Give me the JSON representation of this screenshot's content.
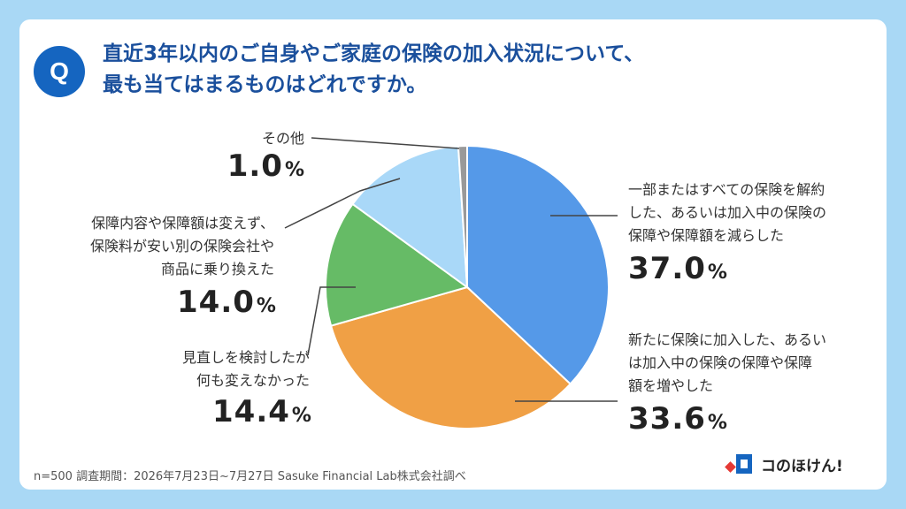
{
  "question": {
    "badge": "Q",
    "line1": "直近3年以内のご自身やご家庭の保険の加入状況について、",
    "line2": "最も当てはまるものはどれですか。"
  },
  "chart_data": {
    "type": "pie",
    "slices": [
      {
        "label_lines": [
          "一部またはすべての保険を解約",
          "した、あるいは加入中の保険の",
          "保障や保障額を減らした"
        ],
        "value": 37.0,
        "value_text": "37.0",
        "color": "#5599e8"
      },
      {
        "label_lines": [
          "新たに保険に加入した、あるい",
          "は加入中の保険の保障や保障",
          "額を増やした"
        ],
        "value": 33.6,
        "value_text": "33.6",
        "color": "#f0a045"
      },
      {
        "label_lines": [
          "見直しを検討したが",
          "何も変えなかった"
        ],
        "value": 14.4,
        "value_text": "14.4",
        "color": "#66bb66"
      },
      {
        "label_lines": [
          "保障内容や保障額は変えず、",
          "保険料が安い別の保険会社や",
          "商品に乗り換えた"
        ],
        "value": 14.0,
        "value_text": "14.0",
        "color": "#a9d8f8"
      },
      {
        "label_lines": [
          "その他"
        ],
        "value": 1.0,
        "value_text": "1.0",
        "color": "#999999"
      }
    ],
    "unit": "%"
  },
  "footnote": "n=500 調査期間：2026年7月23日~7月27日 Sasuke Financial Lab株式会社調べ",
  "brand": {
    "name": "コのほけん!",
    "colors": {
      "primary": "#1565c0",
      "accent": "#e53935"
    }
  }
}
